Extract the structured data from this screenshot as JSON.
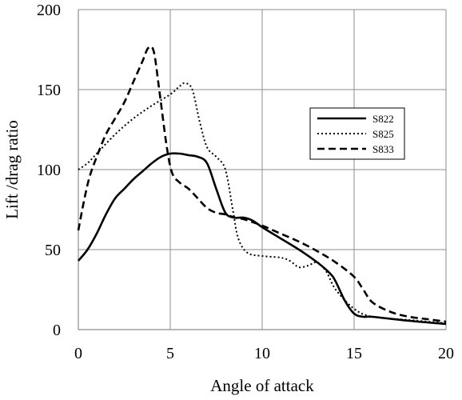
{
  "chart_data": {
    "type": "line",
    "title": "",
    "xlabel": "Angle of attack",
    "ylabel": "Lift /drag ratio",
    "xlim": [
      0,
      20
    ],
    "ylim": [
      0,
      200
    ],
    "x_ticks": [
      0,
      5,
      10,
      15,
      20
    ],
    "y_ticks": [
      0,
      50,
      100,
      150,
      200
    ],
    "grid": true,
    "legend_position": "right",
    "series": [
      {
        "name": "S822",
        "line_style": "solid",
        "color": "#000000",
        "points": [
          [
            0,
            43
          ],
          [
            0.5,
            50
          ],
          [
            1,
            60
          ],
          [
            1.5,
            72
          ],
          [
            2,
            82
          ],
          [
            2.5,
            88
          ],
          [
            3,
            94
          ],
          [
            3.5,
            99
          ],
          [
            4,
            104
          ],
          [
            4.5,
            108
          ],
          [
            5,
            110
          ],
          [
            5.5,
            110
          ],
          [
            6,
            109
          ],
          [
            6.5,
            108
          ],
          [
            7,
            104
          ],
          [
            7.5,
            88
          ],
          [
            8,
            73
          ],
          [
            8.5,
            70
          ],
          [
            9,
            70
          ],
          [
            9.5,
            68
          ],
          [
            10,
            64
          ],
          [
            11,
            57
          ],
          [
            12,
            50
          ],
          [
            13,
            42
          ],
          [
            13.7,
            35
          ],
          [
            14,
            30
          ],
          [
            14.5,
            18
          ],
          [
            15,
            10
          ],
          [
            15.5,
            8
          ],
          [
            16,
            8
          ],
          [
            18,
            5.5
          ],
          [
            20,
            3.5
          ]
        ]
      },
      {
        "name": "S825",
        "line_style": "dotted",
        "color": "#000000",
        "points": [
          [
            0,
            100
          ],
          [
            0.5,
            104
          ],
          [
            1,
            110
          ],
          [
            2,
            122
          ],
          [
            3,
            132
          ],
          [
            4,
            140
          ],
          [
            5,
            147
          ],
          [
            5.5,
            152
          ],
          [
            5.8,
            154
          ],
          [
            6.2,
            150
          ],
          [
            6.6,
            130
          ],
          [
            7,
            114
          ],
          [
            7.5,
            108
          ],
          [
            8,
            100
          ],
          [
            8.4,
            75
          ],
          [
            8.7,
            57
          ],
          [
            9.2,
            48
          ],
          [
            10,
            46
          ],
          [
            11,
            45
          ],
          [
            11.5,
            43
          ],
          [
            12,
            39
          ],
          [
            12.5,
            40
          ],
          [
            13,
            42
          ],
          [
            13.5,
            36
          ],
          [
            14,
            25
          ],
          [
            15,
            13
          ],
          [
            16,
            8
          ],
          [
            18,
            6
          ],
          [
            20,
            4
          ]
        ]
      },
      {
        "name": "S833",
        "line_style": "dashed",
        "color": "#000000",
        "points": [
          [
            0,
            62
          ],
          [
            0.3,
            80
          ],
          [
            0.6,
            95
          ],
          [
            1,
            108
          ],
          [
            1.5,
            122
          ],
          [
            2,
            132
          ],
          [
            2.5,
            142
          ],
          [
            3,
            155
          ],
          [
            3.5,
            168
          ],
          [
            3.8,
            176
          ],
          [
            4.1,
            174
          ],
          [
            4.4,
            150
          ],
          [
            4.8,
            115
          ],
          [
            5.1,
            98
          ],
          [
            5.5,
            92
          ],
          [
            6,
            88
          ],
          [
            6.5,
            82
          ],
          [
            7,
            76
          ],
          [
            7.5,
            73
          ],
          [
            8,
            72
          ],
          [
            8.5,
            70
          ],
          [
            9,
            69
          ],
          [
            10,
            65
          ],
          [
            11,
            60
          ],
          [
            12,
            55
          ],
          [
            13,
            49
          ],
          [
            14,
            42
          ],
          [
            15,
            33
          ],
          [
            15.5,
            25
          ],
          [
            16,
            17
          ],
          [
            17,
            11
          ],
          [
            18,
            8
          ],
          [
            19,
            6.5
          ],
          [
            20,
            5
          ]
        ]
      }
    ]
  }
}
